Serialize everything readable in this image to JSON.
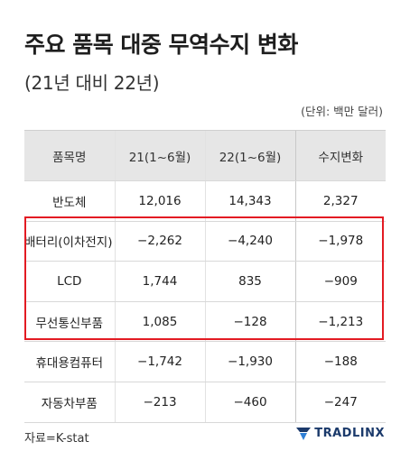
{
  "title": "주요 품목 대중 무역수지 변화",
  "subtitle": "(21년 대비 22년)",
  "unit_note": "(단위: 백만 달러)",
  "table": {
    "headers": [
      "품목명",
      "21(1~6월)",
      "22(1~6월)",
      "수지변화"
    ],
    "rows": [
      {
        "item": "반도체",
        "y21": "12,016",
        "y22": "14,343",
        "change": "2,327"
      },
      {
        "item": "배터리(이차전지) 자재",
        "y21": "−2,262",
        "y22": "−4,240",
        "change": "−1,978"
      },
      {
        "item": "LCD",
        "y21": "1,744",
        "y22": "835",
        "change": "−909"
      },
      {
        "item": "무선통신부품",
        "y21": "1,085",
        "y22": "−128",
        "change": "−1,213"
      },
      {
        "item": "휴대용컴퓨터",
        "y21": "−1,742",
        "y22": "−1,930",
        "change": "−188"
      },
      {
        "item": "자동차부품",
        "y21": "−213",
        "y22": "−460",
        "change": "−247"
      }
    ]
  },
  "colors": {
    "highlight_box": "#e31b23",
    "red_values": "#e0383e",
    "header_bg": "#e6e6e6",
    "brand": "#1b3a6b"
  },
  "source": "자료=K-stat",
  "brand": {
    "icon": "tradlinx-logo-icon",
    "text": "TRADLINX"
  }
}
